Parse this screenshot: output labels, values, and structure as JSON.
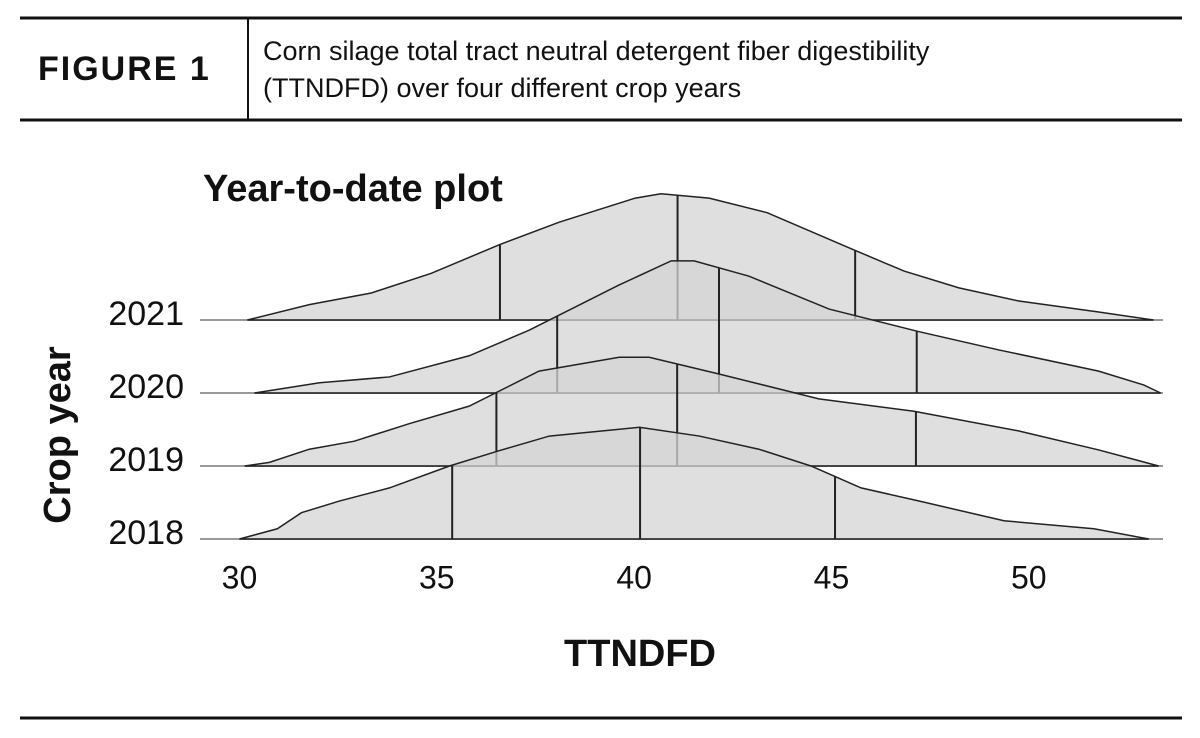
{
  "header": {
    "label": "FIGURE 1",
    "caption": [
      "Corn silage total tract neutral detergent fiber digestibility",
      "(TTNDFD) over four different crop years"
    ]
  },
  "chart_data": {
    "type": "ridgeline",
    "title": "Year-to-date plot",
    "x_label": "TTNDFD",
    "y_label": "Crop year",
    "xlim": [
      29,
      53.4
    ],
    "xticks": [
      30,
      35,
      40,
      45,
      50
    ],
    "color": "#d4d4d4",
    "series": [
      {
        "name": "2021",
        "x": [
          30.2,
          31.77,
          33.34,
          34.86,
          36.58,
          38.1,
          40.03,
          40.68,
          41.9,
          43.37,
          45.57,
          46.84,
          48.23,
          49.75,
          51.77,
          53.16
        ],
        "values": [
          0,
          0.21,
          0.37,
          0.64,
          1.03,
          1.34,
          1.67,
          1.73,
          1.67,
          1.47,
          0.96,
          0.67,
          0.44,
          0.26,
          0.11,
          0
        ],
        "quartiles": [
          36.6,
          41.1,
          45.6
        ]
      },
      {
        "name": "2020",
        "x": [
          30.38,
          32.03,
          33.8,
          35.82,
          37.34,
          39.62,
          40.94,
          41.52,
          42.91,
          44.94,
          47.22,
          49.24,
          51.77,
          52.91,
          53.34
        ],
        "values": [
          0,
          0.14,
          0.22,
          0.51,
          0.86,
          1.48,
          1.81,
          1.81,
          1.6,
          1.15,
          0.84,
          0.59,
          0.3,
          0.11,
          0
        ],
        "quartiles": [
          38.05,
          42.15,
          47.16
        ]
      },
      {
        "name": "2019",
        "x": [
          30.13,
          30.76,
          31.77,
          32.91,
          34.3,
          35.82,
          37.59,
          39.62,
          40.38,
          42.15,
          44.68,
          47.09,
          49.75,
          51.77,
          53.29
        ],
        "values": [
          0,
          0.05,
          0.23,
          0.34,
          0.58,
          0.82,
          1.3,
          1.49,
          1.49,
          1.26,
          0.92,
          0.75,
          0.48,
          0.22,
          0
        ],
        "quartiles": [
          36.51,
          41.09,
          47.14
        ]
      },
      {
        "name": "2018",
        "x": [
          30,
          30.96,
          31.57,
          32.53,
          33.8,
          35.32,
          36.58,
          37.85,
          40.13,
          41.65,
          43.16,
          44.48,
          45.75,
          47.22,
          49.37,
          51.65,
          53.04
        ],
        "values": [
          0,
          0.14,
          0.36,
          0.52,
          0.7,
          1.0,
          1.21,
          1.41,
          1.53,
          1.41,
          1.23,
          1.0,
          0.7,
          0.52,
          0.25,
          0.14,
          0
        ],
        "quartiles": [
          35.39,
          40.15,
          45.09
        ]
      }
    ]
  }
}
